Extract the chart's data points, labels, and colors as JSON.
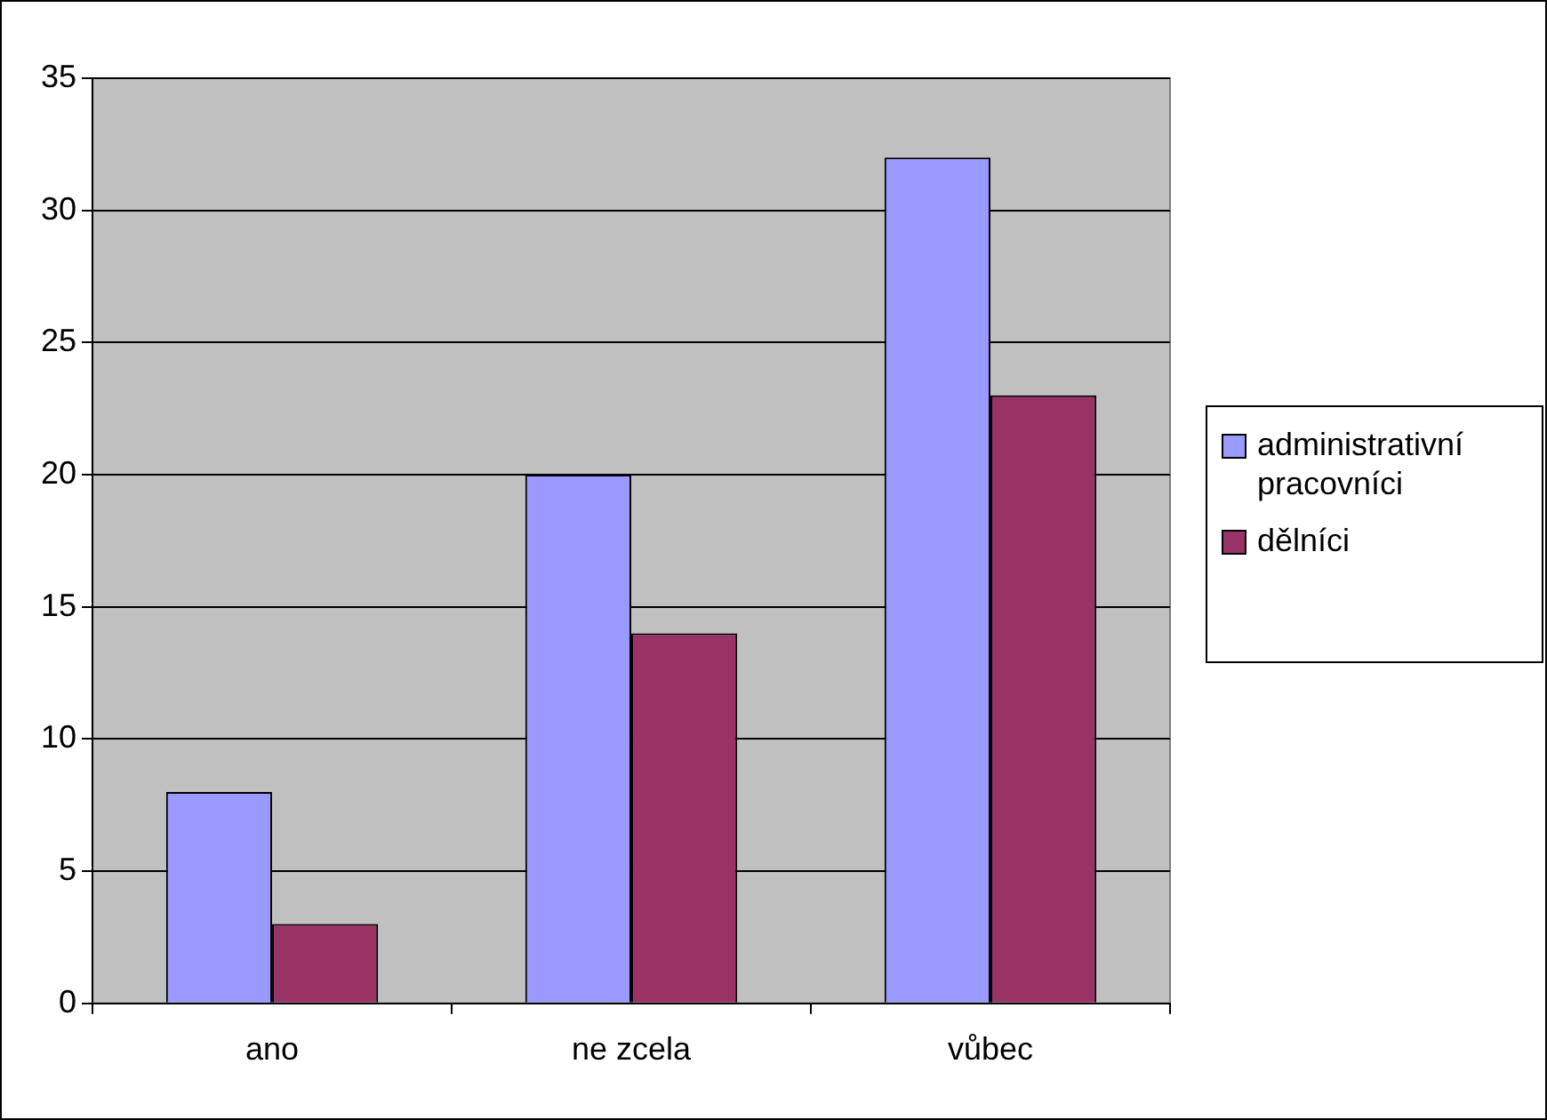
{
  "chart_data": {
    "type": "bar",
    "categories": [
      "ano",
      "ne zcela",
      "vůbec"
    ],
    "series": [
      {
        "name": "administrativní pracovníci",
        "color": "#9999ff",
        "values": [
          8,
          20,
          32
        ]
      },
      {
        "name": "dělníci",
        "color": "#993366",
        "values": [
          3,
          14,
          23
        ]
      }
    ],
    "ylim": [
      0,
      35
    ],
    "yticks": [
      0,
      5,
      10,
      15,
      20,
      25,
      30,
      35
    ],
    "grid": "y",
    "legend": "right"
  }
}
